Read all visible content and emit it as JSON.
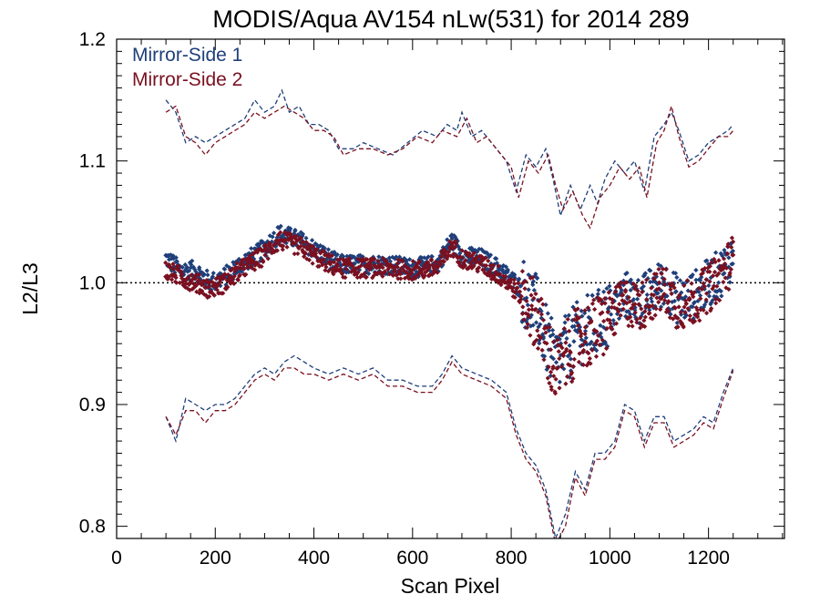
{
  "chart_data": {
    "type": "scatter",
    "title": "MODIS/Aqua AV154 nLw(531) for 2014 289",
    "xlabel": "Scan Pixel",
    "ylabel": "L2/L3",
    "xlim": [
      0,
      1354
    ],
    "ylim": [
      0.79,
      1.2
    ],
    "xticks": [
      "0",
      "200",
      "400",
      "600",
      "800",
      "1000",
      "1200"
    ],
    "yticks": [
      "0.8",
      "0.9",
      "1.0",
      "1.1",
      "1.2"
    ],
    "reference_line": 1.0,
    "colors": {
      "ms1": "#1f3f7a",
      "ms2": "#7a1020",
      "reference": "#000000"
    },
    "legend_position": "top-left",
    "series": [
      {
        "name": "Mirror-Side 1",
        "color": "#1f3f7a",
        "mean": [
          [
            100,
            1.02
          ],
          [
            130,
            1.01
          ],
          [
            160,
            1.01
          ],
          [
            190,
            1.0
          ],
          [
            220,
            1.005
          ],
          [
            250,
            1.015
          ],
          [
            290,
            1.025
          ],
          [
            330,
            1.04
          ],
          [
            370,
            1.035
          ],
          [
            410,
            1.025
          ],
          [
            450,
            1.015
          ],
          [
            500,
            1.015
          ],
          [
            550,
            1.015
          ],
          [
            600,
            1.012
          ],
          [
            650,
            1.015
          ],
          [
            680,
            1.035
          ],
          [
            700,
            1.022
          ],
          [
            740,
            1.02
          ],
          [
            780,
            1.01
          ],
          [
            820,
            0.995
          ],
          [
            850,
            0.98
          ],
          [
            870,
            0.955
          ],
          [
            890,
            0.935
          ],
          [
            910,
            0.945
          ],
          [
            940,
            0.96
          ],
          [
            970,
            0.965
          ],
          [
            1000,
            0.975
          ],
          [
            1030,
            0.99
          ],
          [
            1060,
            0.985
          ],
          [
            1090,
            0.995
          ],
          [
            1110,
            1.0
          ],
          [
            1140,
            0.985
          ],
          [
            1170,
            0.99
          ],
          [
            1200,
            1.0
          ],
          [
            1230,
            1.01
          ],
          [
            1250,
            1.025
          ]
        ],
        "upper": [
          [
            100,
            1.15
          ],
          [
            120,
            1.14
          ],
          [
            140,
            1.115
          ],
          [
            160,
            1.12
          ],
          [
            180,
            1.115
          ],
          [
            200,
            1.12
          ],
          [
            220,
            1.125
          ],
          [
            240,
            1.13
          ],
          [
            260,
            1.135
          ],
          [
            280,
            1.15
          ],
          [
            300,
            1.14
          ],
          [
            320,
            1.145
          ],
          [
            335,
            1.158
          ],
          [
            350,
            1.14
          ],
          [
            370,
            1.145
          ],
          [
            390,
            1.13
          ],
          [
            410,
            1.13
          ],
          [
            430,
            1.125
          ],
          [
            450,
            1.11
          ],
          [
            480,
            1.11
          ],
          [
            500,
            1.115
          ],
          [
            530,
            1.11
          ],
          [
            560,
            1.105
          ],
          [
            590,
            1.115
          ],
          [
            620,
            1.125
          ],
          [
            650,
            1.12
          ],
          [
            670,
            1.13
          ],
          [
            690,
            1.125
          ],
          [
            700,
            1.14
          ],
          [
            720,
            1.12
          ],
          [
            740,
            1.125
          ],
          [
            760,
            1.115
          ],
          [
            790,
            1.1
          ],
          [
            810,
            1.075
          ],
          [
            830,
            1.105
          ],
          [
            850,
            1.095
          ],
          [
            870,
            1.11
          ],
          [
            885,
            1.085
          ],
          [
            900,
            1.055
          ],
          [
            920,
            1.08
          ],
          [
            940,
            1.06
          ],
          [
            960,
            1.08
          ],
          [
            975,
            1.065
          ],
          [
            990,
            1.085
          ],
          [
            1010,
            1.1
          ],
          [
            1030,
            1.09
          ],
          [
            1050,
            1.1
          ],
          [
            1070,
            1.075
          ],
          [
            1090,
            1.12
          ],
          [
            1110,
            1.13
          ],
          [
            1125,
            1.14
          ],
          [
            1140,
            1.125
          ],
          [
            1160,
            1.1
          ],
          [
            1180,
            1.105
          ],
          [
            1200,
            1.115
          ],
          [
            1220,
            1.12
          ],
          [
            1240,
            1.125
          ],
          [
            1250,
            1.13
          ]
        ],
        "lower": [
          [
            100,
            0.89
          ],
          [
            120,
            0.87
          ],
          [
            140,
            0.905
          ],
          [
            160,
            0.9
          ],
          [
            180,
            0.895
          ],
          [
            200,
            0.9
          ],
          [
            220,
            0.9
          ],
          [
            240,
            0.905
          ],
          [
            260,
            0.915
          ],
          [
            280,
            0.925
          ],
          [
            300,
            0.93
          ],
          [
            320,
            0.925
          ],
          [
            340,
            0.935
          ],
          [
            360,
            0.94
          ],
          [
            380,
            0.935
          ],
          [
            400,
            0.93
          ],
          [
            430,
            0.925
          ],
          [
            460,
            0.93
          ],
          [
            490,
            0.925
          ],
          [
            520,
            0.93
          ],
          [
            550,
            0.92
          ],
          [
            580,
            0.92
          ],
          [
            610,
            0.915
          ],
          [
            640,
            0.915
          ],
          [
            660,
            0.925
          ],
          [
            680,
            0.94
          ],
          [
            700,
            0.93
          ],
          [
            730,
            0.925
          ],
          [
            760,
            0.92
          ],
          [
            790,
            0.91
          ],
          [
            810,
            0.88
          ],
          [
            830,
            0.86
          ],
          [
            850,
            0.85
          ],
          [
            870,
            0.83
          ],
          [
            890,
            0.79
          ],
          [
            910,
            0.81
          ],
          [
            930,
            0.845
          ],
          [
            950,
            0.83
          ],
          [
            970,
            0.86
          ],
          [
            990,
            0.86
          ],
          [
            1010,
            0.87
          ],
          [
            1030,
            0.9
          ],
          [
            1050,
            0.895
          ],
          [
            1070,
            0.87
          ],
          [
            1090,
            0.89
          ],
          [
            1110,
            0.89
          ],
          [
            1130,
            0.87
          ],
          [
            1150,
            0.875
          ],
          [
            1170,
            0.88
          ],
          [
            1190,
            0.89
          ],
          [
            1210,
            0.885
          ],
          [
            1230,
            0.91
          ],
          [
            1250,
            0.93
          ]
        ]
      },
      {
        "name": "Mirror-Side 2",
        "color": "#7a1020",
        "mean": [
          [
            100,
            1.01
          ],
          [
            130,
            1.005
          ],
          [
            160,
            1.0
          ],
          [
            190,
            0.995
          ],
          [
            220,
            1.0
          ],
          [
            250,
            1.01
          ],
          [
            290,
            1.02
          ],
          [
            330,
            1.035
          ],
          [
            370,
            1.03
          ],
          [
            410,
            1.02
          ],
          [
            450,
            1.012
          ],
          [
            500,
            1.012
          ],
          [
            550,
            1.012
          ],
          [
            600,
            1.01
          ],
          [
            650,
            1.012
          ],
          [
            680,
            1.03
          ],
          [
            700,
            1.02
          ],
          [
            740,
            1.015
          ],
          [
            780,
            1.005
          ],
          [
            820,
            0.99
          ],
          [
            850,
            0.975
          ],
          [
            870,
            0.95
          ],
          [
            890,
            0.925
          ],
          [
            910,
            0.94
          ],
          [
            940,
            0.955
          ],
          [
            970,
            0.96
          ],
          [
            1000,
            0.97
          ],
          [
            1030,
            0.985
          ],
          [
            1060,
            0.98
          ],
          [
            1090,
            0.99
          ],
          [
            1110,
            0.995
          ],
          [
            1140,
            0.98
          ],
          [
            1170,
            0.985
          ],
          [
            1200,
            0.995
          ],
          [
            1230,
            1.008
          ],
          [
            1250,
            1.02
          ]
        ],
        "upper": [
          [
            100,
            1.14
          ],
          [
            120,
            1.145
          ],
          [
            140,
            1.12
          ],
          [
            160,
            1.115
          ],
          [
            180,
            1.105
          ],
          [
            200,
            1.115
          ],
          [
            220,
            1.12
          ],
          [
            240,
            1.125
          ],
          [
            260,
            1.13
          ],
          [
            280,
            1.14
          ],
          [
            300,
            1.135
          ],
          [
            320,
            1.14
          ],
          [
            340,
            1.145
          ],
          [
            360,
            1.14
          ],
          [
            380,
            1.135
          ],
          [
            400,
            1.125
          ],
          [
            420,
            1.125
          ],
          [
            440,
            1.12
          ],
          [
            460,
            1.105
          ],
          [
            490,
            1.11
          ],
          [
            520,
            1.11
          ],
          [
            550,
            1.105
          ],
          [
            580,
            1.11
          ],
          [
            610,
            1.12
          ],
          [
            640,
            1.115
          ],
          [
            660,
            1.125
          ],
          [
            690,
            1.12
          ],
          [
            710,
            1.135
          ],
          [
            730,
            1.115
          ],
          [
            750,
            1.12
          ],
          [
            770,
            1.11
          ],
          [
            800,
            1.095
          ],
          [
            815,
            1.07
          ],
          [
            835,
            1.1
          ],
          [
            855,
            1.09
          ],
          [
            875,
            1.105
          ],
          [
            890,
            1.08
          ],
          [
            905,
            1.06
          ],
          [
            925,
            1.075
          ],
          [
            945,
            1.055
          ],
          [
            960,
            1.045
          ],
          [
            980,
            1.07
          ],
          [
            1000,
            1.08
          ],
          [
            1020,
            1.095
          ],
          [
            1040,
            1.085
          ],
          [
            1060,
            1.095
          ],
          [
            1075,
            1.07
          ],
          [
            1095,
            1.115
          ],
          [
            1110,
            1.125
          ],
          [
            1125,
            1.145
          ],
          [
            1140,
            1.12
          ],
          [
            1160,
            1.095
          ],
          [
            1180,
            1.1
          ],
          [
            1200,
            1.11
          ],
          [
            1220,
            1.12
          ],
          [
            1240,
            1.12
          ],
          [
            1250,
            1.125
          ]
        ],
        "lower": [
          [
            100,
            0.89
          ],
          [
            120,
            0.875
          ],
          [
            140,
            0.895
          ],
          [
            160,
            0.895
          ],
          [
            180,
            0.885
          ],
          [
            200,
            0.895
          ],
          [
            220,
            0.895
          ],
          [
            240,
            0.9
          ],
          [
            260,
            0.91
          ],
          [
            280,
            0.92
          ],
          [
            300,
            0.925
          ],
          [
            320,
            0.92
          ],
          [
            340,
            0.93
          ],
          [
            360,
            0.93
          ],
          [
            380,
            0.925
          ],
          [
            400,
            0.925
          ],
          [
            430,
            0.92
          ],
          [
            460,
            0.925
          ],
          [
            490,
            0.92
          ],
          [
            520,
            0.925
          ],
          [
            550,
            0.915
          ],
          [
            580,
            0.915
          ],
          [
            610,
            0.91
          ],
          [
            640,
            0.91
          ],
          [
            660,
            0.92
          ],
          [
            680,
            0.935
          ],
          [
            700,
            0.925
          ],
          [
            730,
            0.92
          ],
          [
            760,
            0.915
          ],
          [
            790,
            0.905
          ],
          [
            810,
            0.875
          ],
          [
            830,
            0.855
          ],
          [
            850,
            0.845
          ],
          [
            870,
            0.825
          ],
          [
            890,
            0.785
          ],
          [
            910,
            0.8
          ],
          [
            930,
            0.84
          ],
          [
            950,
            0.825
          ],
          [
            970,
            0.855
          ],
          [
            990,
            0.855
          ],
          [
            1010,
            0.865
          ],
          [
            1030,
            0.895
          ],
          [
            1050,
            0.89
          ],
          [
            1070,
            0.865
          ],
          [
            1090,
            0.885
          ],
          [
            1110,
            0.885
          ],
          [
            1130,
            0.865
          ],
          [
            1150,
            0.87
          ],
          [
            1170,
            0.875
          ],
          [
            1190,
            0.885
          ],
          [
            1210,
            0.88
          ],
          [
            1230,
            0.905
          ],
          [
            1250,
            0.928
          ]
        ]
      }
    ]
  }
}
